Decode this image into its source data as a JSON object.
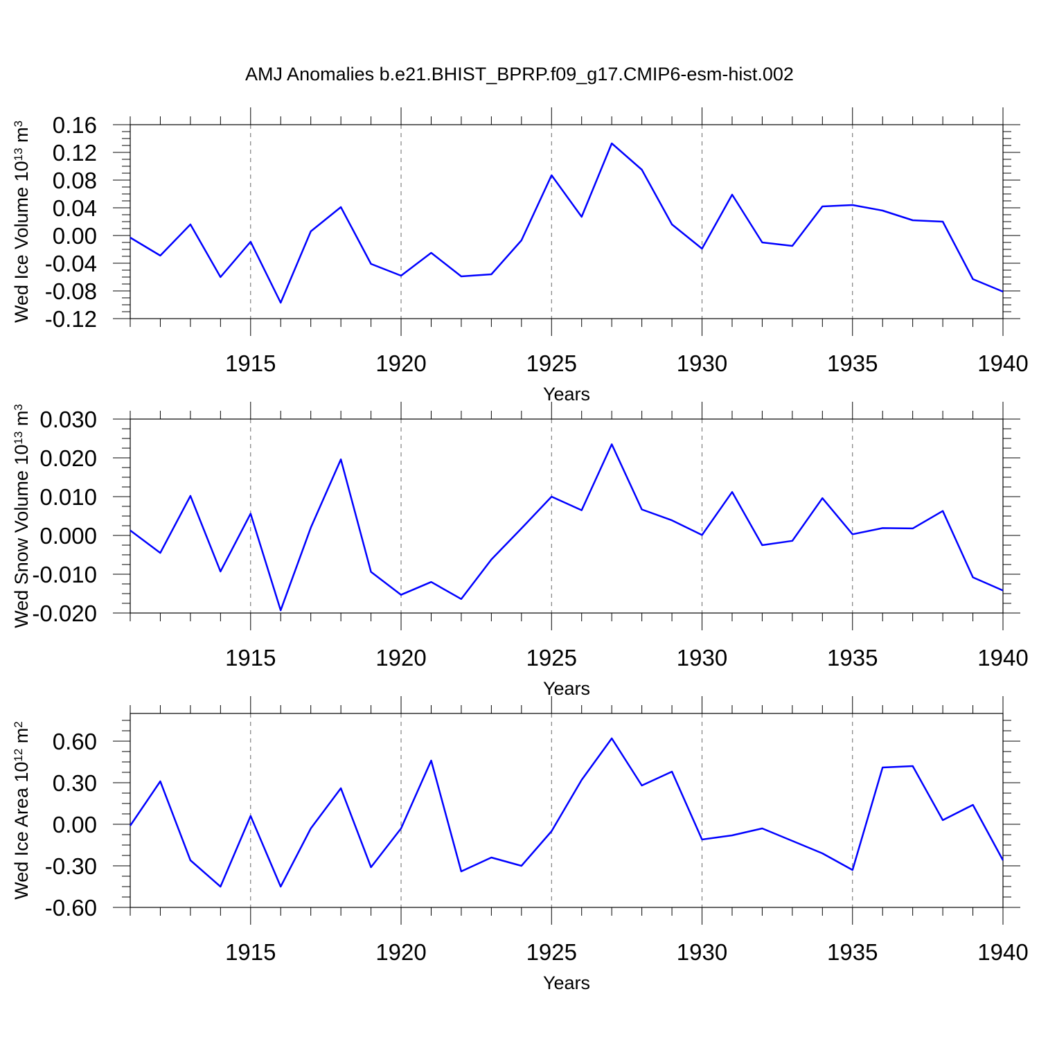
{
  "title": "AMJ Anomalies b.e21.BHIST_BPRP.f09_g17.CMIP6-esm-hist.002",
  "colors": {
    "series": "#0000ff",
    "axes": "#000000",
    "grid": "#666666"
  },
  "chart_data": [
    {
      "type": "line",
      "xlabel": "Years",
      "ylabel": "Wed Ice Volume 10",
      "ylabel_exp": "13",
      "ylabel_unit": "m",
      "ylabel_unit_exp": "3",
      "xlim": [
        1911,
        1940
      ],
      "ylim": [
        -0.12,
        0.16
      ],
      "xticks": [
        1915,
        1920,
        1925,
        1930,
        1935,
        1940
      ],
      "yticks": [
        "0.16",
        "0.12",
        "0.08",
        "0.04",
        "0.00",
        "-0.04",
        "-0.08",
        "-0.12"
      ],
      "ytick_values": [
        0.16,
        0.12,
        0.08,
        0.04,
        0.0,
        -0.04,
        -0.08,
        -0.12
      ],
      "grid": "dashed vertical at major x ticks",
      "x": [
        1911,
        1912,
        1913,
        1914,
        1915,
        1916,
        1917,
        1918,
        1919,
        1920,
        1921,
        1922,
        1923,
        1924,
        1925,
        1926,
        1927,
        1928,
        1929,
        1930,
        1931,
        1932,
        1933,
        1934,
        1935,
        1936,
        1937,
        1938,
        1939,
        1940
      ],
      "values": [
        -0.003,
        -0.029,
        0.016,
        -0.06,
        -0.009,
        -0.097,
        0.006,
        0.041,
        -0.041,
        -0.058,
        -0.025,
        -0.059,
        -0.056,
        -0.007,
        0.087,
        0.027,
        0.133,
        0.095,
        0.016,
        -0.019,
        0.059,
        -0.01,
        -0.015,
        0.042,
        0.044,
        0.036,
        0.022,
        0.02,
        -0.063,
        -0.081
      ]
    },
    {
      "type": "line",
      "xlabel": "Years",
      "ylabel": "Wed Snow Volume 10",
      "ylabel_exp": "13",
      "ylabel_unit": "m",
      "ylabel_unit_exp": "3",
      "xlim": [
        1911,
        1940
      ],
      "ylim": [
        -0.02,
        0.03
      ],
      "xticks": [
        1915,
        1920,
        1925,
        1930,
        1935,
        1940
      ],
      "yticks": [
        "0.030",
        "0.020",
        "0.010",
        "0.000",
        "-0.010",
        "-0.020"
      ],
      "ytick_values": [
        0.03,
        0.02,
        0.01,
        0.0,
        -0.01,
        -0.02
      ],
      "grid": "dashed vertical at major x ticks",
      "x": [
        1911,
        1912,
        1913,
        1914,
        1915,
        1916,
        1917,
        1918,
        1919,
        1920,
        1921,
        1922,
        1923,
        1924,
        1925,
        1926,
        1927,
        1928,
        1929,
        1930,
        1931,
        1932,
        1933,
        1934,
        1935,
        1936,
        1937,
        1938,
        1939,
        1940
      ],
      "values": [
        0.0013,
        -0.0045,
        0.0102,
        -0.0093,
        0.0056,
        -0.0193,
        0.002,
        0.0196,
        -0.0094,
        -0.0153,
        -0.012,
        -0.0164,
        -0.0062,
        0.0018,
        0.01,
        0.0065,
        0.0235,
        0.0067,
        0.0039,
        0.0001,
        0.0112,
        -0.0025,
        -0.0014,
        0.0096,
        0.0003,
        0.0019,
        0.0018,
        0.0063,
        -0.0108,
        -0.0142
      ]
    },
    {
      "type": "line",
      "xlabel": "Years",
      "ylabel": "Wed Ice Area 10",
      "ylabel_exp": "12",
      "ylabel_unit": "m",
      "ylabel_unit_exp": "2",
      "xlim": [
        1911,
        1940
      ],
      "ylim": [
        -0.6,
        0.8
      ],
      "xticks": [
        1915,
        1920,
        1925,
        1930,
        1935,
        1940
      ],
      "yticks": [
        "0.60",
        "0.30",
        "0.00",
        "-0.30",
        "-0.60"
      ],
      "ytick_values": [
        0.6,
        0.3,
        0.0,
        -0.3,
        -0.6
      ],
      "grid": "dashed vertical at major x ticks",
      "x": [
        1911,
        1912,
        1913,
        1914,
        1915,
        1916,
        1917,
        1918,
        1919,
        1920,
        1921,
        1922,
        1923,
        1924,
        1925,
        1926,
        1927,
        1928,
        1929,
        1930,
        1931,
        1932,
        1933,
        1934,
        1935,
        1936,
        1937,
        1938,
        1939,
        1940
      ],
      "values": [
        -0.01,
        0.31,
        -0.26,
        -0.45,
        0.06,
        -0.45,
        -0.03,
        0.26,
        -0.31,
        -0.03,
        0.46,
        -0.34,
        -0.24,
        -0.3,
        -0.05,
        0.32,
        0.62,
        0.28,
        0.38,
        -0.11,
        -0.08,
        -0.03,
        -0.12,
        -0.21,
        -0.33,
        0.41,
        0.42,
        0.03,
        0.14,
        -0.26
      ]
    }
  ]
}
